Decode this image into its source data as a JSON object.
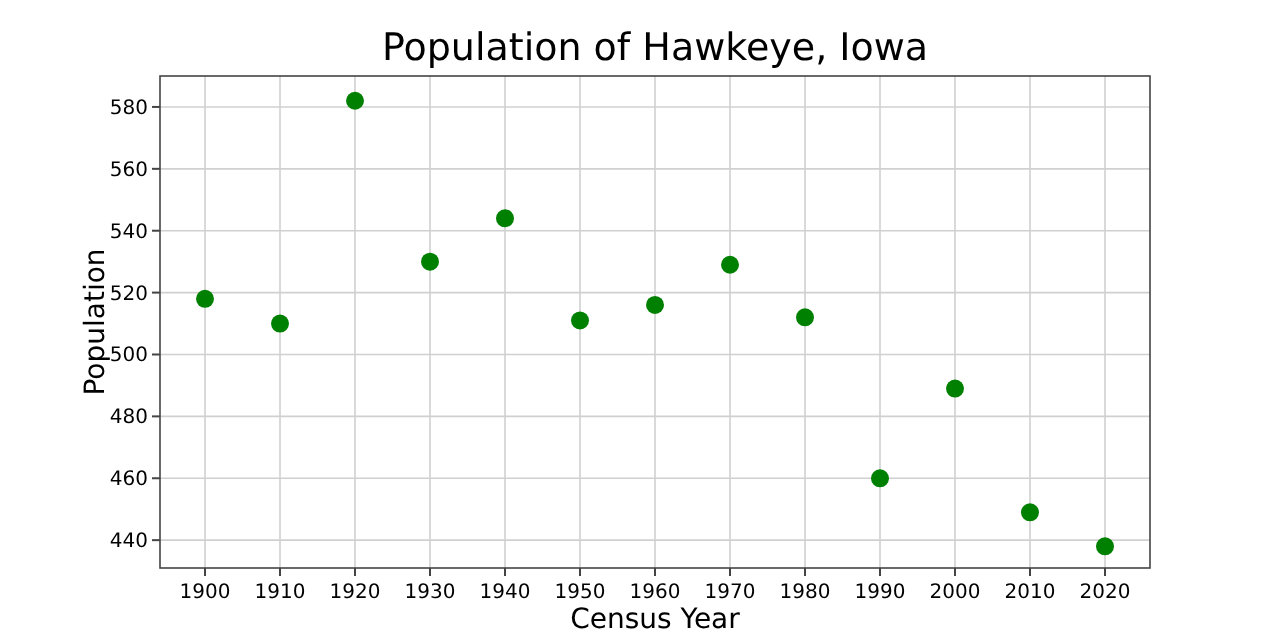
{
  "chart_data": {
    "type": "scatter",
    "title": "Population of Hawkeye, Iowa",
    "xlabel": "Census Year",
    "ylabel": "Population",
    "x": [
      1900,
      1910,
      1920,
      1930,
      1940,
      1950,
      1960,
      1970,
      1980,
      1990,
      2000,
      2010,
      2020
    ],
    "series": [
      {
        "color": "#008000",
        "values": [
          518,
          510,
          582,
          530,
          544,
          511,
          516,
          529,
          512,
          460,
          489,
          449,
          438
        ]
      }
    ],
    "xlim": [
      1894,
      2026
    ],
    "xticks": [
      1900,
      1910,
      1920,
      1930,
      1940,
      1950,
      1960,
      1970,
      1980,
      1990,
      2000,
      2010,
      2020
    ],
    "ylim": [
      431,
      590
    ],
    "yticks": [
      440,
      460,
      480,
      500,
      520,
      540,
      560,
      580
    ],
    "grid": true,
    "marker": "circle"
  }
}
